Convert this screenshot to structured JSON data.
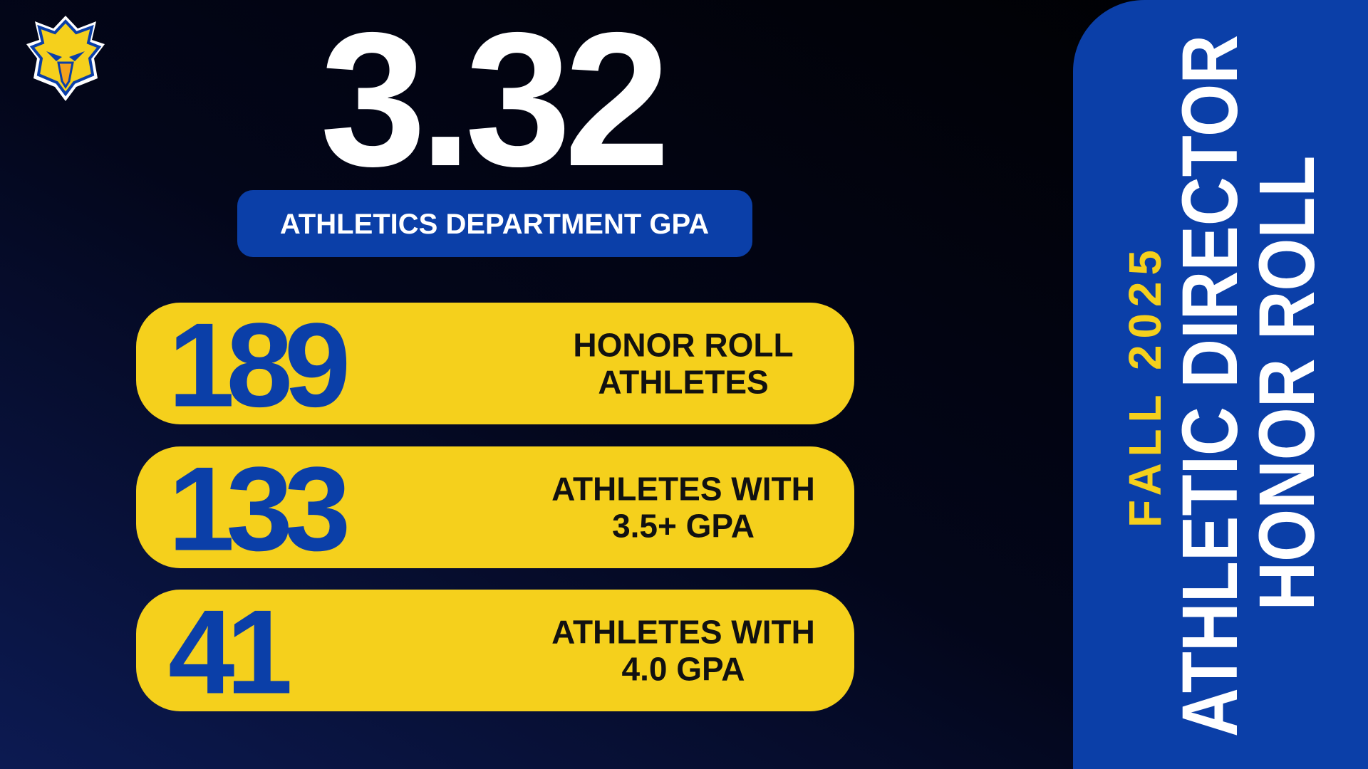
{
  "header": {
    "gpa": 3.32,
    "gpa_label": "ATHLETICS DEPARTMENT GPA"
  },
  "stats": [
    {
      "value": 189,
      "label_lines": [
        "HONOR ROLL",
        "ATHLETES"
      ]
    },
    {
      "value": 133,
      "label_lines": [
        "ATHLETES WITH",
        "3.5+ GPA"
      ]
    },
    {
      "value": 41,
      "label_lines": [
        "ATHLETES WITH",
        "4.0 GPA"
      ]
    }
  ],
  "side_panel": {
    "season": "FALL 2025",
    "title_lines": [
      "ATHLETIC DIRECTOR",
      "HONOR ROLL"
    ]
  }
}
